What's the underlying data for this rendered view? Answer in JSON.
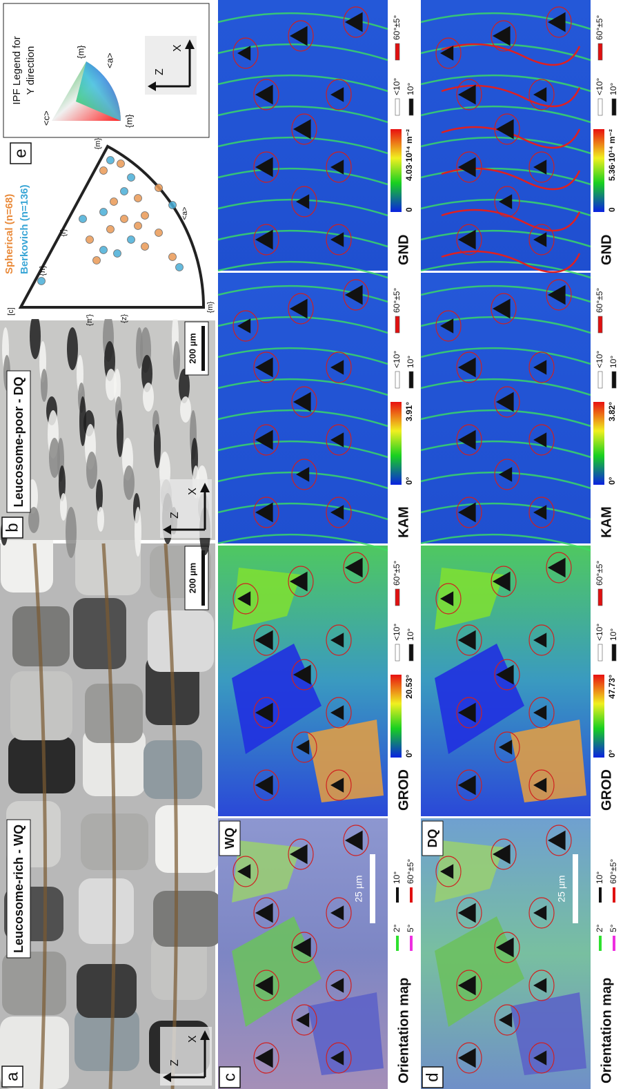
{
  "panels": {
    "a": {
      "label": "a",
      "title": "Leucosome-rich - WQ",
      "axis_z": "Z",
      "axis_x": "X",
      "scale": "200 µm"
    },
    "b": {
      "label": "b",
      "title": "Leucosome-poor - DQ",
      "axis_z": "Z",
      "axis_x": "X",
      "scale": "200 µm"
    },
    "e": {
      "label": "e",
      "series": [
        "Spherical (n=68)",
        "Berkovich (n=136)"
      ],
      "poles": {
        "c": "[c]",
        "m1": "{m}",
        "m2": "{m}",
        "a": "<a>",
        "r": "{r}",
        "pi": "{π}",
        "pi2": "{π'}",
        "z": "{z}"
      }
    }
  },
  "ipf_legend": {
    "title_lines": [
      "IPF Legend for",
      "Y direction"
    ],
    "corners": [
      "<c>",
      "{m}",
      "<a>",
      "{m}"
    ],
    "axis_z": "Z",
    "axis_x": "X"
  },
  "rows": [
    {
      "label": "c",
      "sample": "WQ",
      "scale": "25 µm",
      "orientation": {
        "title": "Orientation map",
        "legend": [
          "2°",
          "5°",
          "10°",
          "60°±5°"
        ]
      },
      "maps": [
        {
          "title": "GROD",
          "min": "0°",
          "max": "20.53°"
        },
        {
          "title": "KAM",
          "min": "0°",
          "max": "3.91°"
        },
        {
          "title": "GND",
          "min": "0",
          "max": "4.03·10¹⁴ m⁻²"
        }
      ],
      "boundary_legend": [
        "<10°",
        "10°",
        "60°±5°"
      ]
    },
    {
      "label": "d",
      "sample": "DQ",
      "scale": "25 µm",
      "orientation": {
        "title": "Orientation map",
        "legend": [
          "2°",
          "5°",
          "10°",
          "60°±5°"
        ]
      },
      "maps": [
        {
          "title": "GROD",
          "min": "0°",
          "max": "47.73°"
        },
        {
          "title": "KAM",
          "min": "0°",
          "max": "3.82°"
        },
        {
          "title": "GND",
          "min": "0",
          "max": "5.36·10¹⁴ m⁻²"
        }
      ],
      "boundary_legend": [
        "<10°",
        "10°",
        "60°±5°"
      ]
    }
  ]
}
